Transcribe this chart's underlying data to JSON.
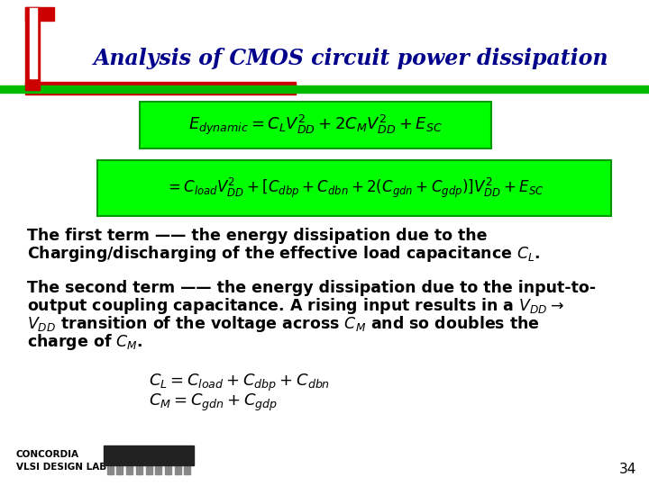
{
  "title": "Analysis of CMOS circuit power dissipation",
  "title_color": "#00008B",
  "bg_color": "#FFFFFF",
  "formula1": "$E_{dynamic} = C_L V_{DD}^2 + 2C_M V_{DD}^2 + E_{SC}$",
  "formula2": "$= C_{load}V_{DD}^2 + [C_{dbp} + C_{dbn} + 2(C_{gdn} + C_{gdp})]V_{DD}^2 + E_{SC}$",
  "formula_bg": "#00FF00",
  "formula_edge": "#009900",
  "text1_line1": "The first term —— the energy dissipation due to the",
  "text1_line2": "Charging/discharging of the effective load capacitance $C_{L}$.",
  "text2_line1": "The second term —— the energy dissipation due to the input-to-",
  "text2_line2": "output coupling capacitance. A rising input results in a $V_{DD}\\rightarrow$",
  "text2_line3": "$V_{DD}$ transition of the voltage across $C_M$ and so doubles the",
  "text2_line4": "charge of $C_M$.",
  "eq3_line1": "$C_L = C_{load} + C_{dbp} +C_{dbn}$",
  "eq3_line2": "$C_M = C_{gdn} + C_{gdp}$",
  "footer_left": "CONCORDIA\nVLSI DESIGN LAB",
  "page_number": "34",
  "red_color": "#CC0000",
  "green_color": "#00BB00",
  "dark_color": "#333333"
}
